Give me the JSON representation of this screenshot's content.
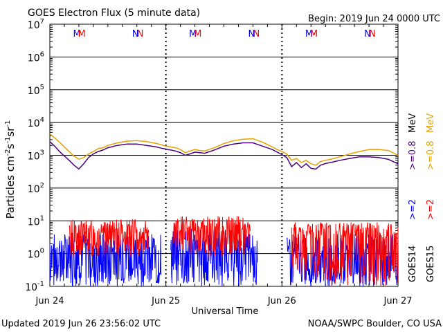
{
  "header": {
    "title": "GOES Electron Flux (5 minute data)",
    "begin": "Begin: 2019 Jun 24 0000 UTC"
  },
  "footer": {
    "updated": "Updated 2019 Jun 26 23:56:02 UTC",
    "source": "NOAA/SWPC Boulder, CO USA"
  },
  "colors": {
    "goes14_08": "#4b0082",
    "goes15_08": "#e8a000",
    "goes14_2": "#0000ff",
    "goes15_2": "#ff0000",
    "threshold": "#000000"
  },
  "chart_data": {
    "type": "line",
    "title": "GOES Electron Flux (5 minute data)",
    "xlabel": "Universal Time",
    "ylabel": "Particles cm⁻²s⁻¹sr⁻¹",
    "yscale": "log",
    "ylim": [
      0.1,
      10000000
    ],
    "xlim": [
      "2019-06-24T00:00",
      "2019-06-27T00:00"
    ],
    "grid": true,
    "x_ticks": [
      "Jun 24",
      "Jun 25",
      "Jun 26",
      "Jun 27"
    ],
    "y_ticks": [
      {
        "base": "10",
        "exp": "7"
      },
      {
        "base": "10",
        "exp": "6"
      },
      {
        "base": "10",
        "exp": "5"
      },
      {
        "base": "10",
        "exp": "4"
      },
      {
        "base": "10",
        "exp": "3"
      },
      {
        "base": "10",
        "exp": "2"
      },
      {
        "base": "10",
        "exp": "1"
      },
      {
        "base": "10",
        "exp": "0"
      },
      {
        "base": "10",
        "exp": "-1"
      }
    ],
    "threshold": {
      "value": 1000,
      "style": "dashed"
    },
    "day_markers": [
      {
        "label_a": "M",
        "label_b": "M",
        "label_c": "N",
        "label_d": "N"
      },
      {
        "label_a": "M",
        "label_b": "M",
        "label_c": "N",
        "label_d": "N"
      },
      {
        "label_a": "M",
        "label_b": "M",
        "label_c": "N",
        "label_d": "N"
      }
    ],
    "legend": {
      "placement": "right-vertical",
      "entries": [
        {
          "satellite": "GOES14",
          "energy": ">=2",
          "unit": "MeV",
          "color": "#0000ff"
        },
        {
          "satellite": "GOES15",
          "energy": ">=2",
          "unit": "MeV",
          "color": "#ff0000"
        },
        {
          "satellite": "GOES14",
          "energy": ">=0.8",
          "unit": "MeV",
          "color": "#4b0082"
        },
        {
          "satellite": "GOES15",
          "energy": ">=0.8",
          "unit": "MeV",
          "color": "#e8a000"
        }
      ],
      "labels": {
        "g14": "GOES14",
        "g15": "GOES15",
        "e2": ">=2",
        "e08": ">=0.8",
        "mev": "MeV"
      }
    },
    "series": [
      {
        "name": "GOES15 >=0.8 MeV",
        "color": "#e8a000",
        "x_hours": [
          0,
          1,
          2,
          3,
          4,
          5,
          6,
          7,
          8,
          9,
          10,
          11,
          12,
          14,
          16,
          18,
          20,
          22,
          23,
          24,
          25,
          26,
          27,
          28,
          29,
          30,
          31,
          32,
          34,
          36,
          38,
          40,
          42,
          44,
          46,
          47,
          48,
          49,
          50,
          51,
          52,
          53,
          54,
          55,
          56,
          57,
          58,
          60,
          62,
          64,
          66,
          68,
          70,
          72
        ],
        "values": [
          4500,
          3400,
          2500,
          1800,
          1300,
          950,
          760,
          850,
          1100,
          1300,
          1600,
          1700,
          2000,
          2400,
          2700,
          2800,
          2600,
          2300,
          2100,
          1900,
          1800,
          1700,
          1500,
          1200,
          1350,
          1500,
          1400,
          1350,
          1700,
          2300,
          2800,
          3100,
          3200,
          2500,
          1800,
          1500,
          1300,
          1100,
          700,
          800,
          600,
          700,
          550,
          500,
          650,
          700,
          750,
          900,
          1100,
          1300,
          1500,
          1500,
          1400,
          1000
        ]
      },
      {
        "name": "GOES14 >=0.8 MeV",
        "color": "#4b0082",
        "x_hours": [
          0,
          1,
          2,
          3,
          4,
          5,
          6,
          7,
          8,
          9,
          10,
          11,
          12,
          14,
          16,
          18,
          20,
          22,
          23,
          24,
          25,
          26,
          27,
          28,
          29,
          30,
          31,
          32,
          34,
          36,
          38,
          40,
          42,
          44,
          46,
          47,
          48,
          49,
          50,
          51,
          52,
          53,
          54,
          55,
          56,
          57,
          58,
          60,
          62,
          64,
          66,
          68,
          70,
          72
        ],
        "values": [
          2600,
          1900,
          1300,
          950,
          700,
          500,
          380,
          550,
          850,
          1100,
          1300,
          1450,
          1700,
          2000,
          2200,
          2200,
          2000,
          1800,
          1650,
          1550,
          1450,
          1350,
          1200,
          1000,
          1100,
          1250,
          1200,
          1150,
          1450,
          1900,
          2200,
          2400,
          2400,
          1900,
          1500,
          1250,
          1050,
          850,
          450,
          600,
          420,
          550,
          400,
          380,
          500,
          560,
          600,
          700,
          800,
          900,
          900,
          850,
          750,
          550
        ]
      }
    ],
    "noisy_series": [
      {
        "name": "GOES14 >=2 MeV",
        "color": "#0000ff",
        "seed": 7,
        "segments": [
          {
            "from": 0,
            "to": 23,
            "high": [
              1.0,
              4.0
            ],
            "low": [
              0.1,
              0.5
            ]
          },
          {
            "from": 25,
            "to": 43,
            "high": [
              1.0,
              6.0
            ],
            "low": [
              0.1,
              0.6
            ]
          },
          {
            "from": 49,
            "to": 72,
            "high": [
              0.8,
              4.0
            ],
            "low": [
              0.1,
              0.4
            ]
          }
        ]
      },
      {
        "name": "GOES15 >=2 MeV",
        "color": "#ff0000",
        "seed": 13,
        "segments": [
          {
            "from": 4,
            "to": 20.5,
            "high": [
              4.0,
              11.0
            ],
            "low": [
              0.8,
              3.0
            ]
          },
          {
            "from": 25.5,
            "to": 41.5,
            "high": [
              4.0,
              14.0
            ],
            "low": [
              0.8,
              3.0
            ]
          },
          {
            "from": 50,
            "to": 72,
            "high": [
              3.0,
              9.0
            ],
            "low": [
              0.1,
              1.0
            ]
          }
        ]
      }
    ]
  }
}
